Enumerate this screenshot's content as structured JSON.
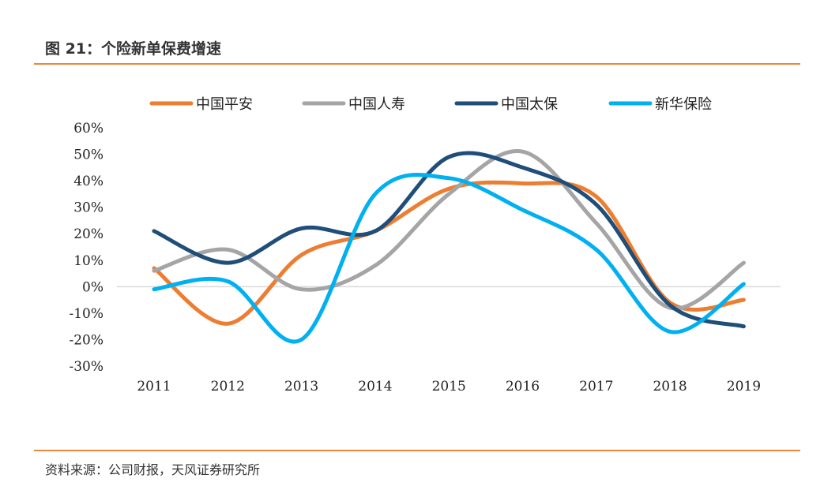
{
  "figure": {
    "title": "图 21：个险新单保费增速",
    "source": "资料来源：公司财报，天风证券研究所"
  },
  "chart_data": {
    "type": "line",
    "title": "图 21：个险新单保费增速",
    "xlabel": "",
    "ylabel": "",
    "categories": [
      "2011",
      "2012",
      "2013",
      "2014",
      "2015",
      "2016",
      "2017",
      "2018",
      "2019"
    ],
    "ylim": [
      -30,
      60
    ],
    "yticks": [
      60,
      50,
      40,
      30,
      20,
      10,
      0,
      -10,
      -20,
      -30
    ],
    "ytick_labels": [
      "60%",
      "50%",
      "40%",
      "30%",
      "20%",
      "10%",
      "0%",
      "-10%",
      "-20%",
      "-30%"
    ],
    "grid": false,
    "zero_line": true,
    "legend_position": "top",
    "series": [
      {
        "name": "中国平安",
        "color": "#ED7D31",
        "values": [
          7,
          -14,
          12,
          21,
          37,
          39,
          34,
          -6,
          -5
        ]
      },
      {
        "name": "中国人寿",
        "color": "#A5A5A5",
        "values": [
          6,
          14,
          -1,
          8,
          35,
          51,
          24,
          -8,
          9
        ]
      },
      {
        "name": "中国太保",
        "color": "#1F4E79",
        "values": [
          21,
          9,
          22,
          21,
          49,
          45,
          31,
          -7,
          -15
        ]
      },
      {
        "name": "新华保险",
        "color": "#00B0F0",
        "values": [
          -1,
          2,
          -20,
          35,
          41,
          29,
          14,
          -17,
          1
        ]
      }
    ]
  }
}
